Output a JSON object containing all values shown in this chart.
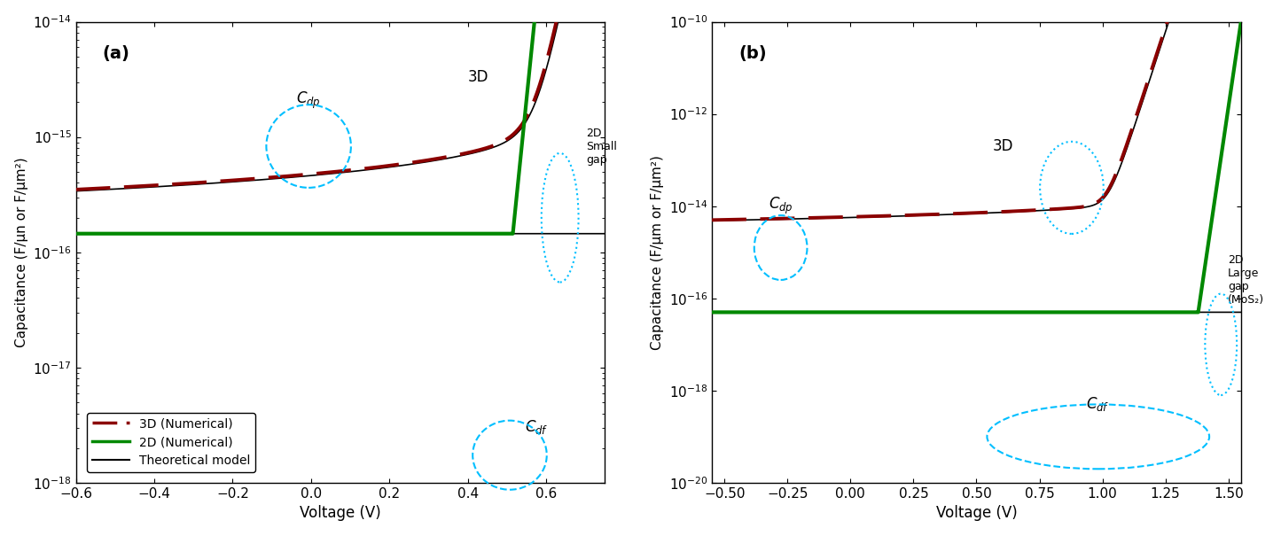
{
  "panel_a": {
    "title": "(a)",
    "xlabel": "Voltage (V)",
    "ylabel": "Capacitance (F/μn or F/μm²)",
    "xlim": [
      -0.6,
      0.75
    ],
    "ylim_log": [
      -18,
      -14
    ],
    "label_3D": "3D",
    "label_2D": "2D\nSmall\ngap"
  },
  "panel_b": {
    "title": "(b)",
    "xlabel": "Voltage (V)",
    "ylabel": "Capacitance (F/μm or F/μm²)",
    "xlim": [
      -0.55,
      1.55
    ],
    "ylim_log": [
      -20,
      -10
    ],
    "label_3D": "3D",
    "label_2D": "2D\nLarge\ngap\n(MoS₂)"
  },
  "legend_labels": [
    "3D (Numerical)",
    "2D (Numerical)",
    "Theoretical model"
  ],
  "colors": {
    "numerical_3D": "#8B0000",
    "numerical_2D": "#008800",
    "theoretical": "#000000",
    "ellipse_dashed": "#00BFFF",
    "ellipse_dotted": "#00BFFF"
  }
}
